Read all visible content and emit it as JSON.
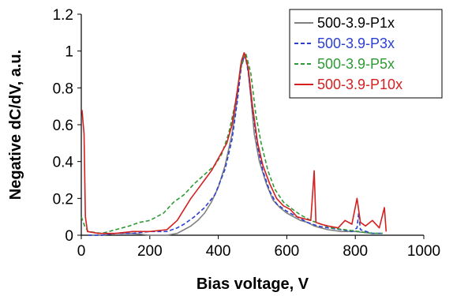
{
  "chart_data": {
    "type": "line",
    "xlabel": "Bias voltage, V",
    "ylabel": "Negative dC/dV, a.u.",
    "xlim": [
      0,
      1000
    ],
    "ylim": [
      0,
      1.2
    ],
    "x_ticks": [
      0,
      200,
      400,
      600,
      800,
      1000
    ],
    "y_ticks": [
      0,
      0.2,
      0.4,
      0.6,
      0.8,
      1,
      1.2
    ],
    "x_tick_labels": [
      "0",
      "200",
      "400",
      "600",
      "800",
      "1000"
    ],
    "y_tick_labels": [
      "0",
      "0.2",
      "0.4",
      "0.6",
      "0.8",
      "1",
      "1.2"
    ],
    "grid": false,
    "legend_position": "top-right",
    "series": [
      {
        "name": "500-3.9-P1x",
        "color": "#808080",
        "dash": "solid",
        "points": [
          [
            20,
            0
          ],
          [
            60,
            0
          ],
          [
            100,
            0.01
          ],
          [
            150,
            0.01
          ],
          [
            200,
            0
          ],
          [
            250,
            0
          ],
          [
            280,
            0.01
          ],
          [
            300,
            0.03
          ],
          [
            320,
            0.05
          ],
          [
            340,
            0.08
          ],
          [
            360,
            0.12
          ],
          [
            380,
            0.18
          ],
          [
            400,
            0.26
          ],
          [
            420,
            0.38
          ],
          [
            440,
            0.55
          ],
          [
            455,
            0.75
          ],
          [
            465,
            0.92
          ],
          [
            475,
            0.99
          ],
          [
            485,
            0.93
          ],
          [
            495,
            0.75
          ],
          [
            505,
            0.55
          ],
          [
            520,
            0.4
          ],
          [
            540,
            0.28
          ],
          [
            560,
            0.19
          ],
          [
            580,
            0.15
          ],
          [
            600,
            0.12
          ],
          [
            620,
            0.1
          ],
          [
            640,
            0.08
          ],
          [
            660,
            0.07
          ],
          [
            680,
            0.05
          ],
          [
            700,
            0.04
          ],
          [
            720,
            0.03
          ],
          [
            760,
            0.02
          ],
          [
            800,
            0.02
          ],
          [
            850,
            0.01
          ],
          [
            880,
            0.01
          ]
        ]
      },
      {
        "name": "500-3.9-P3x",
        "color": "#2b3fd0",
        "dash": "dash",
        "points": [
          [
            20,
            0
          ],
          [
            60,
            0
          ],
          [
            100,
            0.01
          ],
          [
            150,
            0.01
          ],
          [
            200,
            0.02
          ],
          [
            250,
            0.02
          ],
          [
            280,
            0.04
          ],
          [
            300,
            0.06
          ],
          [
            330,
            0.1
          ],
          [
            360,
            0.15
          ],
          [
            390,
            0.22
          ],
          [
            420,
            0.36
          ],
          [
            440,
            0.52
          ],
          [
            455,
            0.72
          ],
          [
            468,
            0.93
          ],
          [
            478,
            0.98
          ],
          [
            488,
            0.88
          ],
          [
            500,
            0.68
          ],
          [
            515,
            0.48
          ],
          [
            530,
            0.35
          ],
          [
            550,
            0.24
          ],
          [
            570,
            0.17
          ],
          [
            600,
            0.13
          ],
          [
            630,
            0.1
          ],
          [
            660,
            0.07
          ],
          [
            690,
            0.05
          ],
          [
            720,
            0.04
          ],
          [
            760,
            0.03
          ],
          [
            790,
            0.02
          ],
          [
            805,
            0.04
          ],
          [
            810,
            0.12
          ],
          [
            815,
            0.03
          ],
          [
            850,
            0.01
          ],
          [
            880,
            0.01
          ]
        ]
      },
      {
        "name": "500-3.9-P5x",
        "color": "#2e9a35",
        "dash": "dash",
        "points": [
          [
            0,
            0.1
          ],
          [
            10,
            0.05
          ],
          [
            20,
            0.02
          ],
          [
            60,
            0.01
          ],
          [
            100,
            0.03
          ],
          [
            140,
            0.05
          ],
          [
            170,
            0.07
          ],
          [
            200,
            0.08
          ],
          [
            240,
            0.12
          ],
          [
            270,
            0.18
          ],
          [
            300,
            0.22
          ],
          [
            330,
            0.28
          ],
          [
            360,
            0.33
          ],
          [
            390,
            0.38
          ],
          [
            410,
            0.44
          ],
          [
            430,
            0.55
          ],
          [
            450,
            0.72
          ],
          [
            465,
            0.9
          ],
          [
            480,
            0.99
          ],
          [
            495,
            0.88
          ],
          [
            510,
            0.65
          ],
          [
            525,
            0.5
          ],
          [
            545,
            0.35
          ],
          [
            565,
            0.25
          ],
          [
            590,
            0.18
          ],
          [
            610,
            0.15
          ],
          [
            640,
            0.11
          ],
          [
            670,
            0.08
          ],
          [
            700,
            0.06
          ],
          [
            730,
            0.04
          ],
          [
            770,
            0.03
          ],
          [
            810,
            0.02
          ],
          [
            850,
            0.01
          ],
          [
            880,
            0.01
          ]
        ]
      },
      {
        "name": "500-3.9-P10x",
        "color": "#d42020",
        "dash": "solid",
        "points": [
          [
            2,
            0.68
          ],
          [
            8,
            0.55
          ],
          [
            12,
            0.1
          ],
          [
            18,
            0.02
          ],
          [
            50,
            0.01
          ],
          [
            100,
            0.01
          ],
          [
            150,
            0.02
          ],
          [
            200,
            0.02
          ],
          [
            250,
            0.03
          ],
          [
            280,
            0.08
          ],
          [
            300,
            0.14
          ],
          [
            320,
            0.2
          ],
          [
            340,
            0.25
          ],
          [
            360,
            0.3
          ],
          [
            380,
            0.35
          ],
          [
            395,
            0.4
          ],
          [
            410,
            0.45
          ],
          [
            425,
            0.5
          ],
          [
            440,
            0.6
          ],
          [
            455,
            0.78
          ],
          [
            468,
            0.95
          ],
          [
            476,
            0.99
          ],
          [
            488,
            0.9
          ],
          [
            500,
            0.7
          ],
          [
            515,
            0.5
          ],
          [
            530,
            0.38
          ],
          [
            550,
            0.28
          ],
          [
            570,
            0.2
          ],
          [
            590,
            0.16
          ],
          [
            610,
            0.14
          ],
          [
            630,
            0.1
          ],
          [
            650,
            0.09
          ],
          [
            670,
            0.08
          ],
          [
            680,
            0.35
          ],
          [
            685,
            0.07
          ],
          [
            700,
            0.06
          ],
          [
            720,
            0.05
          ],
          [
            750,
            0.04
          ],
          [
            770,
            0.08
          ],
          [
            790,
            0.06
          ],
          [
            805,
            0.2
          ],
          [
            815,
            0.07
          ],
          [
            830,
            0.05
          ],
          [
            850,
            0.08
          ],
          [
            870,
            0.04
          ],
          [
            885,
            0.15
          ],
          [
            890,
            0.02
          ]
        ]
      }
    ]
  }
}
